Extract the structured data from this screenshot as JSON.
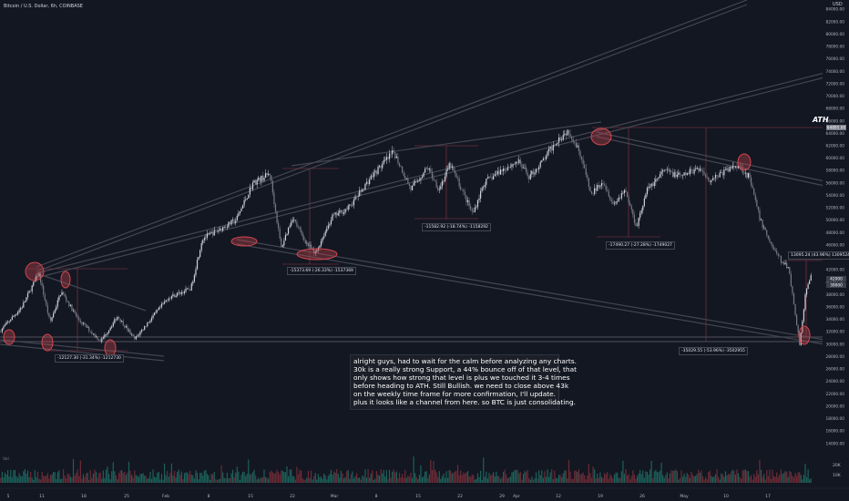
{
  "header": {
    "symbol_line": "Bitcoin / U.S. Dollar, 6h, COINBASE"
  },
  "ath_label": "ATH",
  "axis_unit": "USD",
  "note_lines": [
    "alright guys, had to wait for the calm before analyzing any charts.",
    "30k is a really strong Support, a 44% bounce off of that level, that",
    "only shows how strong that level is plus we touched it 3-4 times",
    "before heading to ATH. Still Bullish. we need to close above 43k",
    "on the weekly time frame for more confirmation, I'll update.",
    "plus it looks like a channel from here. so BTC is just consolidating."
  ],
  "volume_label": "Vol",
  "colors": {
    "background": "#131722",
    "up": "#d1d4dc",
    "down": "#787b86",
    "circle": "#d4474f",
    "channel": "#434651",
    "measure": "#d44b54"
  },
  "chart_data": {
    "type": "candlestick",
    "x_range": [
      "2021-01-03",
      "2021-05-22"
    ],
    "x_ticks": [
      "5",
      "11",
      "18",
      "25",
      "Feb",
      "8",
      "15",
      "22",
      "Mar",
      "8",
      "15",
      "22",
      "29",
      "Apr",
      "12",
      "19",
      "26",
      "May",
      "10",
      "17"
    ],
    "y_ticks": [
      84000,
      82000,
      80000,
      78000,
      76000,
      74000,
      72000,
      70000,
      68000,
      66000,
      64000,
      62000,
      60000,
      58000,
      56000,
      54000,
      52000,
      50000,
      48000,
      46000,
      44000,
      42000,
      40000,
      38000,
      36000,
      34000,
      32000,
      30000,
      28000,
      26000,
      24000,
      22000,
      20000,
      18000,
      16000,
      14000
    ],
    "ylim": [
      12500,
      85500
    ],
    "price_path": [
      [
        0,
        32000
      ],
      [
        4,
        36000
      ],
      [
        7,
        41500
      ],
      [
        9,
        33500
      ],
      [
        11,
        38500
      ],
      [
        14,
        34000
      ],
      [
        18,
        30500
      ],
      [
        21,
        34500
      ],
      [
        24,
        30800
      ],
      [
        27,
        34200
      ],
      [
        30,
        37500
      ],
      [
        34,
        39000
      ],
      [
        36,
        47000
      ],
      [
        39,
        48500
      ],
      [
        42,
        50000
      ],
      [
        45,
        56000
      ],
      [
        48,
        57500
      ],
      [
        50,
        45500
      ],
      [
        52,
        50500
      ],
      [
        54,
        47000
      ],
      [
        56,
        44500
      ],
      [
        59,
        50500
      ],
      [
        62,
        52000
      ],
      [
        66,
        57000
      ],
      [
        70,
        61000
      ],
      [
        73,
        55000
      ],
      [
        76,
        58500
      ],
      [
        78,
        55000
      ],
      [
        80,
        59000
      ],
      [
        82,
        55000
      ],
      [
        84,
        51000
      ],
      [
        86,
        56000
      ],
      [
        89,
        58000
      ],
      [
        92,
        59500
      ],
      [
        94,
        57000
      ],
      [
        96,
        59000
      ],
      [
        99,
        63000
      ],
      [
        101,
        64500
      ],
      [
        103,
        61000
      ],
      [
        105,
        54000
      ],
      [
        107,
        56500
      ],
      [
        109,
        52500
      ],
      [
        111,
        55000
      ],
      [
        113,
        49000
      ],
      [
        115,
        55000
      ],
      [
        118,
        58000
      ],
      [
        121,
        57000
      ],
      [
        124,
        58500
      ],
      [
        126,
        56500
      ],
      [
        129,
        58000
      ],
      [
        131,
        59000
      ],
      [
        133,
        57000
      ],
      [
        135,
        50000
      ],
      [
        137,
        46000
      ],
      [
        139,
        43000
      ],
      [
        140,
        42500
      ],
      [
        142,
        30000
      ],
      [
        143,
        38000
      ],
      [
        144,
        41000
      ]
    ],
    "volume_ticks": [
      "20K",
      "10K"
    ],
    "price_labels": [
      "42000",
      "39000",
      "64895.00"
    ],
    "annotations": [
      "-12127.30 (-31.34%) -1212730",
      "-15373.69 (-26.33%) -1537369",
      "-11582.92 (-18.74%) -1158292",
      "-17490.27 (-27.28%) -1749027",
      "-35029.55 (-53.96%) -3502955",
      "13095.24 (43.96%) 1309524"
    ],
    "grid": false
  }
}
